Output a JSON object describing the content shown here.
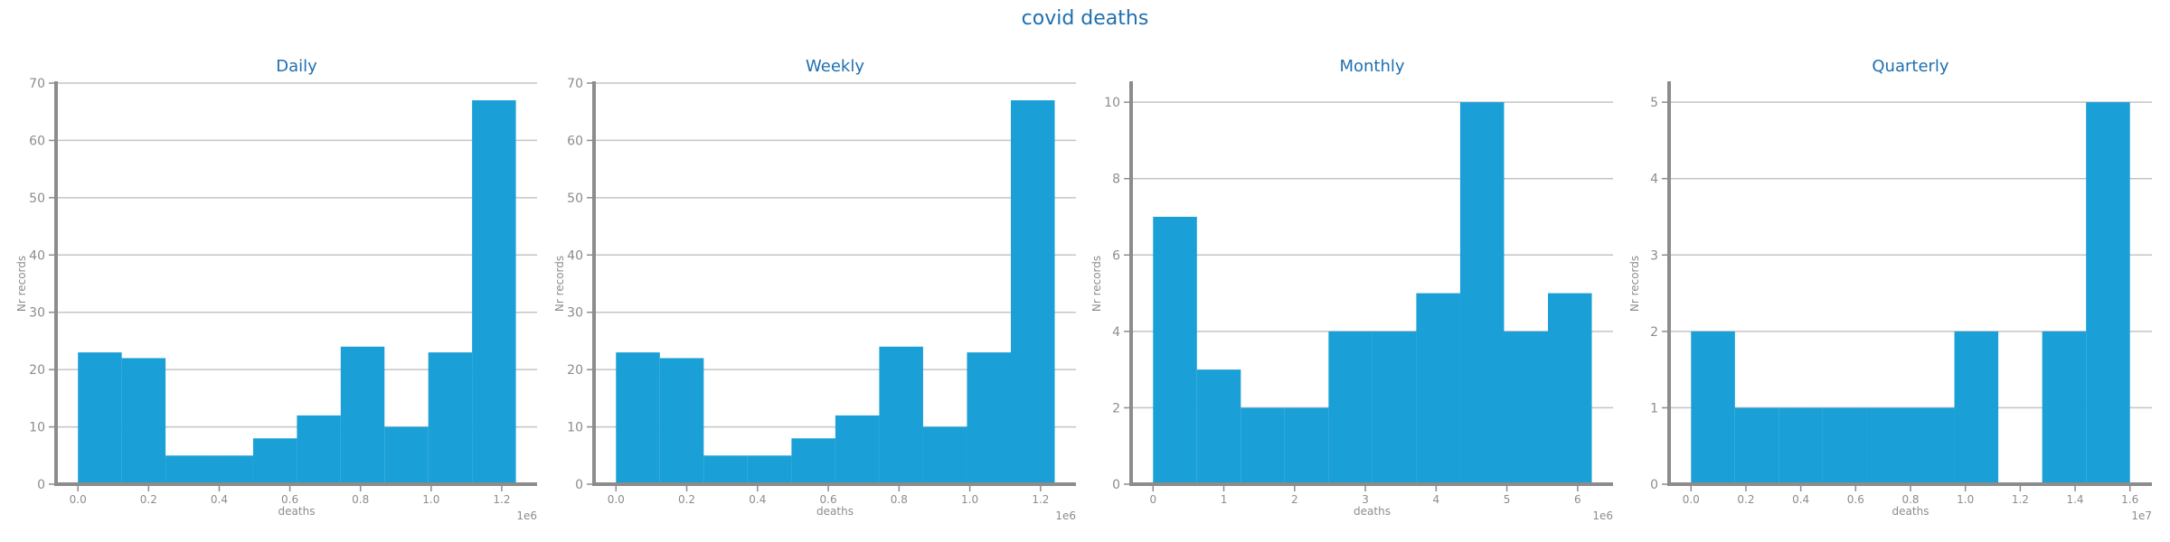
{
  "suptitle": "covid deaths",
  "colors": {
    "bar": "#1a9fd6",
    "title": "#1f6fb0",
    "axis": "#8c8c8c",
    "grid": "#c4c4c4",
    "tick": "#8c8c8c"
  },
  "chart_data": [
    {
      "type": "bar",
      "title": "Daily",
      "xlabel": "deaths",
      "ylabel": "Nr records",
      "offset_label": "1e6",
      "grid": true,
      "xlim": [
        -0.062,
        1.3
      ],
      "ylim": [
        0,
        70
      ],
      "xticks": [
        0.0,
        0.2,
        0.4,
        0.6,
        0.8,
        1.0,
        1.2
      ],
      "xtick_labels": [
        "0.0",
        "0.2",
        "0.4",
        "0.6",
        "0.8",
        "1.0",
        "1.2"
      ],
      "yticks": [
        0,
        10,
        20,
        30,
        40,
        50,
        60,
        70
      ],
      "ytick_labels": [
        "0",
        "10",
        "20",
        "30",
        "40",
        "50",
        "60",
        "70"
      ],
      "bin_edges": [
        0.0,
        0.124,
        0.248,
        0.372,
        0.496,
        0.62,
        0.744,
        0.868,
        0.992,
        1.116,
        1.24
      ],
      "values": [
        23,
        22,
        5,
        5,
        8,
        12,
        24,
        10,
        23,
        67
      ]
    },
    {
      "type": "bar",
      "title": "Weekly",
      "xlabel": "deaths",
      "ylabel": "Nr records",
      "offset_label": "1e6",
      "grid": true,
      "xlim": [
        -0.062,
        1.3
      ],
      "ylim": [
        0,
        70
      ],
      "xticks": [
        0.0,
        0.2,
        0.4,
        0.6,
        0.8,
        1.0,
        1.2
      ],
      "xtick_labels": [
        "0.0",
        "0.2",
        "0.4",
        "0.6",
        "0.8",
        "1.0",
        "1.2"
      ],
      "yticks": [
        0,
        10,
        20,
        30,
        40,
        50,
        60,
        70
      ],
      "ytick_labels": [
        "0",
        "10",
        "20",
        "30",
        "40",
        "50",
        "60",
        "70"
      ],
      "bin_edges": [
        0.0,
        0.124,
        0.248,
        0.372,
        0.496,
        0.62,
        0.744,
        0.868,
        0.992,
        1.116,
        1.24
      ],
      "values": [
        23,
        22,
        5,
        5,
        8,
        12,
        24,
        10,
        23,
        67
      ]
    },
    {
      "type": "bar",
      "title": "Monthly",
      "xlabel": "deaths",
      "ylabel": "Nr records",
      "offset_label": "1e6",
      "grid": true,
      "xlim": [
        -0.31,
        6.5
      ],
      "ylim": [
        0,
        10.5
      ],
      "xticks": [
        0,
        1,
        2,
        3,
        4,
        5,
        6
      ],
      "xtick_labels": [
        "0",
        "1",
        "2",
        "3",
        "4",
        "5",
        "6"
      ],
      "yticks": [
        0,
        2,
        4,
        6,
        8,
        10
      ],
      "ytick_labels": [
        "0",
        "2",
        "4",
        "6",
        "8",
        "10"
      ],
      "bin_edges": [
        0.0,
        0.62,
        1.24,
        1.86,
        2.48,
        3.1,
        3.72,
        4.34,
        4.96,
        5.58,
        6.2
      ],
      "values": [
        7,
        3,
        2,
        2,
        4,
        4,
        5,
        10,
        4,
        5
      ]
    },
    {
      "type": "bar",
      "title": "Quarterly",
      "xlabel": "deaths",
      "ylabel": "Nr records",
      "offset_label": "1e7",
      "grid": true,
      "xlim": [
        -0.08,
        1.68
      ],
      "ylim": [
        0,
        5.25
      ],
      "xticks": [
        0.0,
        0.2,
        0.4,
        0.6,
        0.8,
        1.0,
        1.2,
        1.4,
        1.6
      ],
      "xtick_labels": [
        "0.0",
        "0.2",
        "0.4",
        "0.6",
        "0.8",
        "1.0",
        "1.2",
        "1.4",
        "1.6"
      ],
      "yticks": [
        0,
        1,
        2,
        3,
        4,
        5
      ],
      "ytick_labels": [
        "0",
        "1",
        "2",
        "3",
        "4",
        "5"
      ],
      "bin_edges": [
        0.0,
        0.16,
        0.32,
        0.48,
        0.64,
        0.8,
        0.96,
        1.12,
        1.28,
        1.44,
        1.6
      ],
      "values": [
        2,
        1,
        1,
        1,
        1,
        1,
        2,
        0,
        2,
        5
      ]
    }
  ]
}
